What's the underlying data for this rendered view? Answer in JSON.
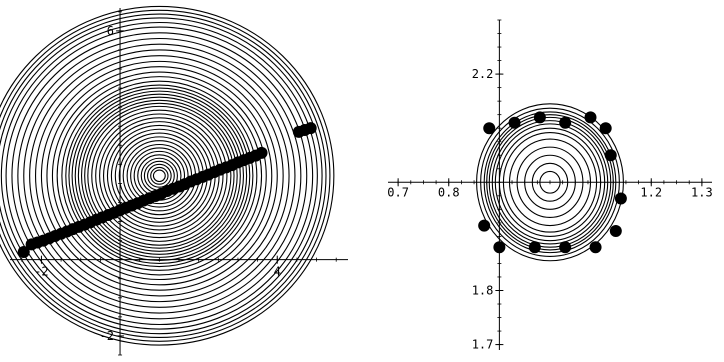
{
  "chart_data": [
    {
      "type": "scatter",
      "title": "",
      "xlabel": "",
      "ylabel": "",
      "xlim": [
        -2.8,
        5.8
      ],
      "ylim": [
        -2.5,
        6.6
      ],
      "grid": false,
      "axis_crossing": [
        0,
        0
      ],
      "x_ticks": [
        {
          "value": -2,
          "label": "-2"
        },
        {
          "value": 4,
          "label": "4"
        }
      ],
      "y_ticks": [
        {
          "value": -2,
          "label": "-2"
        },
        {
          "value": 6,
          "label": "6"
        }
      ],
      "rings": {
        "center": [
          1.0,
          2.2
        ],
        "radii": [
          0.15,
          0.22,
          0.3,
          0.38,
          0.46,
          0.55,
          0.64,
          0.73,
          0.82,
          0.92,
          1.02,
          1.12,
          1.22,
          1.32,
          1.42,
          1.52,
          1.62,
          1.72,
          1.82,
          1.9,
          1.98,
          2.06,
          2.14,
          2.22,
          2.3,
          2.38,
          2.48,
          2.6,
          2.72,
          2.86,
          3.0,
          3.15,
          3.3,
          3.45,
          3.6,
          3.75,
          3.9,
          4.02,
          4.14,
          4.24,
          4.34,
          4.44
        ]
      },
      "points": {
        "x": [
          -2.45,
          -2.25,
          -2.1,
          -1.95,
          -1.8,
          -1.65,
          -1.5,
          -1.35,
          -1.2,
          -1.05,
          -0.9,
          -0.75,
          -0.6,
          -0.45,
          -0.3,
          -0.15,
          0.0,
          0.15,
          0.3,
          0.45,
          0.6,
          0.75,
          0.9,
          1.05,
          1.2,
          1.35,
          1.5,
          1.65,
          1.8,
          1.95,
          2.1,
          2.25,
          2.4,
          2.55,
          2.7,
          2.85,
          3.0,
          3.15,
          3.3,
          3.45,
          3.6,
          4.55,
          4.7,
          4.85
        ],
        "y": [
          0.2,
          0.4,
          0.45,
          0.5,
          0.56,
          0.62,
          0.68,
          0.74,
          0.8,
          0.86,
          0.92,
          0.98,
          1.05,
          1.11,
          1.17,
          1.23,
          1.3,
          1.36,
          1.42,
          1.48,
          1.55,
          1.61,
          1.67,
          1.73,
          1.8,
          1.86,
          1.92,
          1.98,
          2.05,
          2.11,
          2.17,
          2.23,
          2.3,
          2.36,
          2.42,
          2.48,
          2.55,
          2.61,
          2.67,
          2.73,
          2.8,
          3.35,
          3.4,
          3.45
        ]
      }
    },
    {
      "type": "scatter",
      "title": "",
      "xlabel": "",
      "ylabel": "",
      "xlim": [
        0.68,
        1.32
      ],
      "ylim": [
        1.69,
        2.3
      ],
      "grid": false,
      "axis_crossing": [
        0.9,
        2.0
      ],
      "x_ticks": [
        {
          "value": 0.7,
          "label": "0.7"
        },
        {
          "value": 0.8,
          "label": "0.8"
        },
        {
          "value": 1.2,
          "label": "1.2"
        },
        {
          "value": 1.3,
          "label": "1.3"
        }
      ],
      "y_ticks": [
        {
          "value": 2.2,
          "label": "2.2"
        },
        {
          "value": 1.8,
          "label": "1.8"
        },
        {
          "value": 1.7,
          "label": "1.7"
        }
      ],
      "rings": {
        "center": [
          1.0,
          2.0
        ],
        "radii": [
          0.02,
          0.035,
          0.05,
          0.065,
          0.08,
          0.092,
          0.1,
          0.108,
          0.114,
          0.12,
          0.125,
          0.13,
          0.137,
          0.145
        ]
      },
      "points": {
        "x": [
          0.88,
          0.93,
          0.98,
          1.03,
          1.08,
          1.11,
          1.12,
          1.14,
          1.13,
          1.09,
          1.03,
          0.97,
          0.9,
          0.87
        ],
        "y": [
          2.1,
          2.11,
          2.12,
          2.11,
          2.12,
          2.1,
          2.05,
          1.97,
          1.91,
          1.88,
          1.88,
          1.88,
          1.88,
          1.92
        ]
      }
    }
  ]
}
